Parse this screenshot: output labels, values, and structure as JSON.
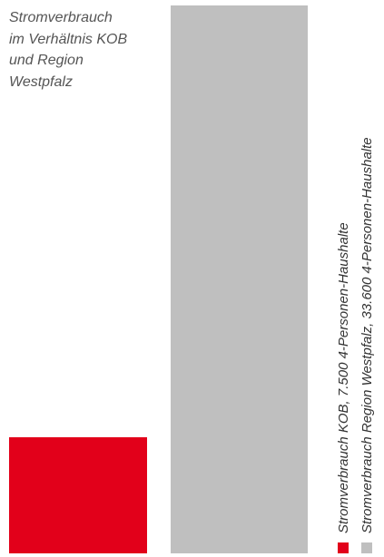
{
  "chart_data": {
    "type": "bar",
    "title_lines": [
      "Stromverbrauch",
      "im Verhältnis KOB",
      "und Region",
      "Westpfalz"
    ],
    "categories": [
      "Stromverbrauch KOB, 7.500 4-Personen-Haushalte",
      "Stromverbrauch Region Westpfalz, 33.600 4-Personen-Haushalte"
    ],
    "values": [
      7500,
      33600
    ],
    "colors": [
      "#e2001a",
      "#bfbfbf"
    ],
    "legend_position": "right, vertical"
  }
}
